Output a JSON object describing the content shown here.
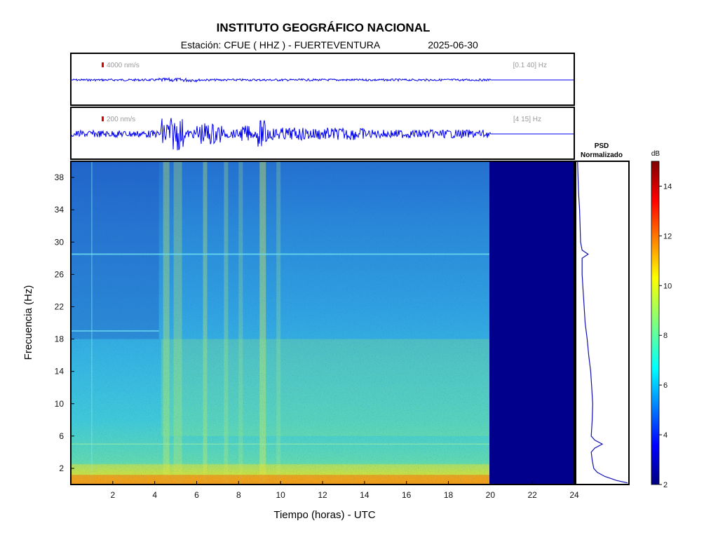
{
  "header": {
    "title": "INSTITUTO GEOGRÁFICO NACIONAL",
    "subtitle_station": "Estación:  CFUE ( HHZ ) - FUERTEVENTURA",
    "subtitle_date": "2025-06-30"
  },
  "traces": [
    {
      "scale_label": "4000 nm/s",
      "band_label": "[0.1 40] Hz"
    },
    {
      "scale_label": "200 nm/s",
      "band_label": "[4 15] Hz"
    }
  ],
  "psd": {
    "title_line1": "PSD",
    "title_line2": "Normalizado"
  },
  "colorbar": {
    "unit": "dB",
    "min": 2,
    "max": 15,
    "ticks": [
      2,
      4,
      6,
      8,
      10,
      12,
      14
    ]
  },
  "chart_data": {
    "type": "heatmap",
    "xlabel": "Tiempo (horas) - UTC",
    "ylabel": "Frecuencia  (Hz)",
    "xlim": [
      0,
      24
    ],
    "ylim": [
      0,
      40
    ],
    "xticks": [
      2,
      4,
      6,
      8,
      10,
      12,
      14,
      16,
      18,
      20,
      22,
      24
    ],
    "yticks": [
      2,
      6,
      10,
      14,
      18,
      22,
      26,
      30,
      34,
      38
    ],
    "data_end_hour": 20,
    "psd_profile": {
      "freq": [
        0.2,
        0.5,
        1,
        1.5,
        2,
        3,
        4,
        4.5,
        5,
        5.5,
        6,
        8,
        10,
        12,
        14,
        16,
        18,
        20,
        22,
        24,
        26,
        28,
        28.5,
        29,
        30,
        32,
        34,
        36,
        38,
        40
      ],
      "value": [
        1.0,
        0.78,
        0.55,
        0.4,
        0.33,
        0.3,
        0.28,
        0.35,
        0.5,
        0.35,
        0.28,
        0.3,
        0.31,
        0.29,
        0.27,
        0.23,
        0.2,
        0.16,
        0.14,
        0.12,
        0.1,
        0.1,
        0.22,
        0.1,
        0.07,
        0.06,
        0.05,
        0.03,
        0.02,
        0.01
      ]
    }
  }
}
